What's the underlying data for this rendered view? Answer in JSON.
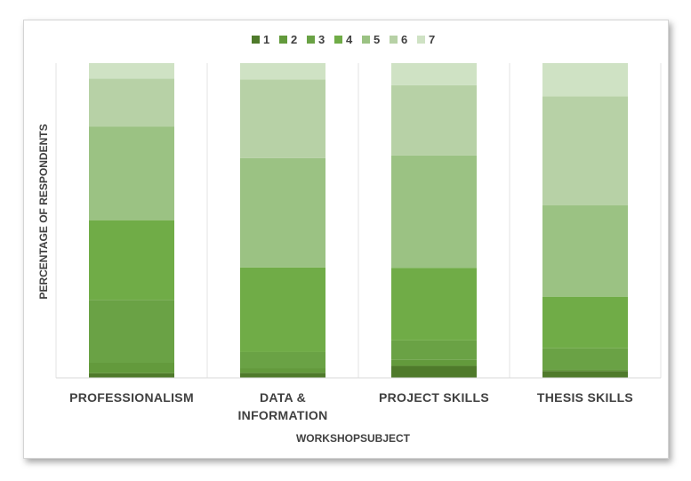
{
  "chart_data": {
    "type": "bar",
    "stacked": true,
    "title": "",
    "xlabel": "WORKSHOPSUBJECT",
    "ylabel": "PERCENTAGE OF RESPONDENTS",
    "ylim": [
      0,
      100
    ],
    "grid": false,
    "legend_position": "top",
    "categories": [
      [
        "PROFESSIONALISM"
      ],
      [
        "DATA &",
        "INFORMATION"
      ],
      [
        "PROJECT SKILLS"
      ],
      [
        "THESIS SKILLS"
      ]
    ],
    "series": [
      {
        "name": "1",
        "color": "#4f7a2b",
        "values": [
          1.5,
          1.6,
          3.8,
          2.2
        ]
      },
      {
        "name": "2",
        "color": "#639a3c",
        "values": [
          3.3,
          1.5,
          1.9,
          0.6
        ]
      },
      {
        "name": "3",
        "color": "#6aa245",
        "values": [
          20.0,
          5.1,
          6.2,
          6.6
        ]
      },
      {
        "name": "4",
        "color": "#70ac47",
        "values": [
          25.3,
          26.9,
          23.0,
          16.4
        ]
      },
      {
        "name": "5",
        "color": "#9bc283",
        "values": [
          29.8,
          34.7,
          35.8,
          29.1
        ]
      },
      {
        "name": "6",
        "color": "#b7d1a6",
        "values": [
          15.2,
          25.0,
          22.3,
          34.5
        ]
      },
      {
        "name": "7",
        "color": "#cfe2c4",
        "values": [
          4.9,
          5.2,
          7.0,
          10.6
        ]
      }
    ]
  }
}
